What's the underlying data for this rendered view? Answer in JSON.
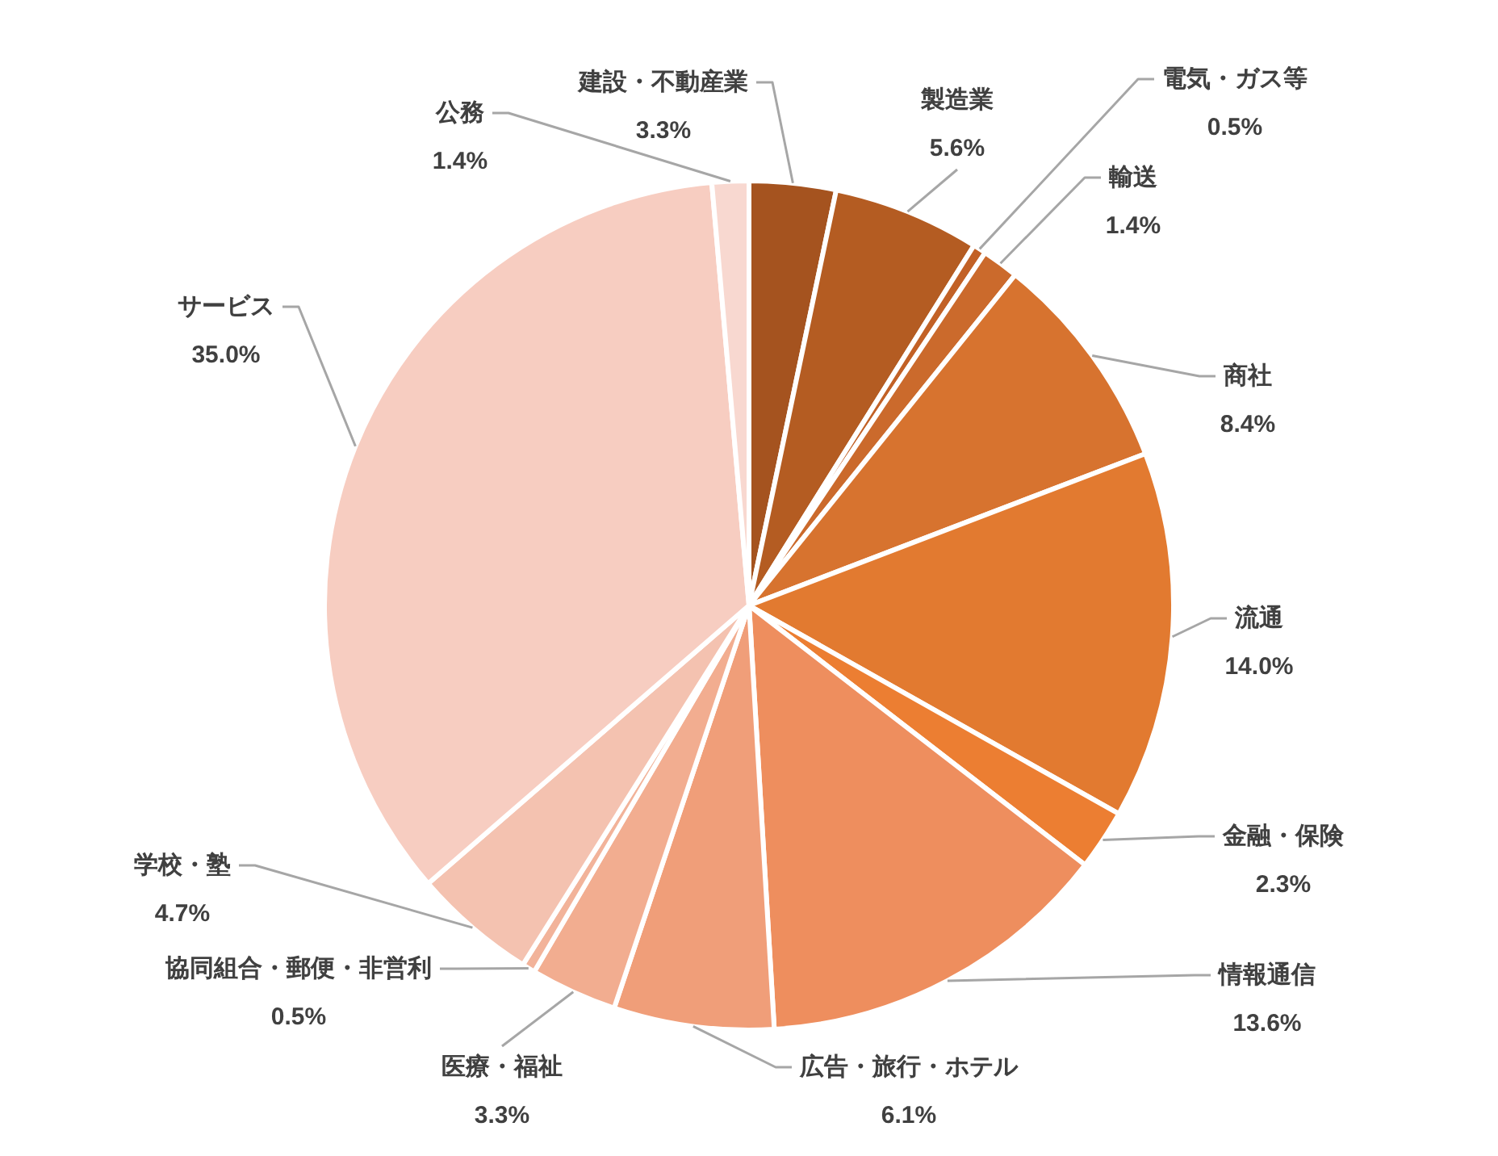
{
  "chart_data": {
    "type": "pie",
    "categories": [
      "建設・不動産業",
      "製造業",
      "電気・ガス等",
      "輸送",
      "商社",
      "流通",
      "金融・保険",
      "情報通信",
      "広告・旅行・ホテル",
      "医療・福祉",
      "協同組合・郵便・非営利",
      "学校・塾",
      "サービス",
      "公務"
    ],
    "values": [
      3.3,
      5.6,
      0.5,
      1.4,
      8.4,
      14.0,
      2.3,
      13.6,
      6.1,
      3.3,
      0.5,
      4.7,
      35.0,
      1.4
    ],
    "value_labels": [
      "3.3%",
      "5.6%",
      "0.5%",
      "1.4%",
      "8.4%",
      "14.0%",
      "2.3%",
      "13.6%",
      "6.1%",
      "3.3%",
      "0.5%",
      "4.7%",
      "35.0%",
      "1.4%"
    ],
    "colors": [
      "#a5531f",
      "#b45c22",
      "#c26126",
      "#cb6a2c",
      "#d7732f",
      "#e27a30",
      "#ec7e32",
      "#ee8e5e",
      "#f09e79",
      "#f2ad90",
      "#f2b39a",
      "#f4c2b0",
      "#f7cdc1",
      "#f8d8d0"
    ]
  }
}
